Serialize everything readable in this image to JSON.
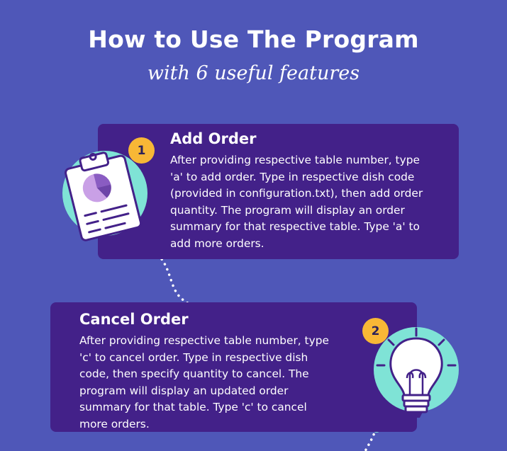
{
  "header": {
    "title": "How to Use The Program",
    "subtitle": "with 6 useful features"
  },
  "features": [
    {
      "number": "1",
      "title": "Add Order",
      "lines": [
        "After providing respective table number, type",
        "'a' to add order. Type in respective dish code",
        "(provided in configuration.txt), then add order",
        "quantity. The program will display an order",
        "summary for that respective table. Type 'a' to",
        "add more orders."
      ],
      "icon": "clipboard-pie-chart-icon"
    },
    {
      "number": "2",
      "title": "Cancel Order",
      "lines": [
        "After providing respective table number, type",
        "'c' to cancel order. Type in respective dish",
        "code, then specify quantity to cancel. The",
        "program will display an updated order",
        "summary for that table. Type 'c' to cancel",
        "more orders."
      ],
      "icon": "lightbulb-icon"
    }
  ],
  "colors": {
    "background": "#4f57b8",
    "card": "#432189",
    "badge": "#f8b736",
    "accent": "#7fe3d6"
  }
}
